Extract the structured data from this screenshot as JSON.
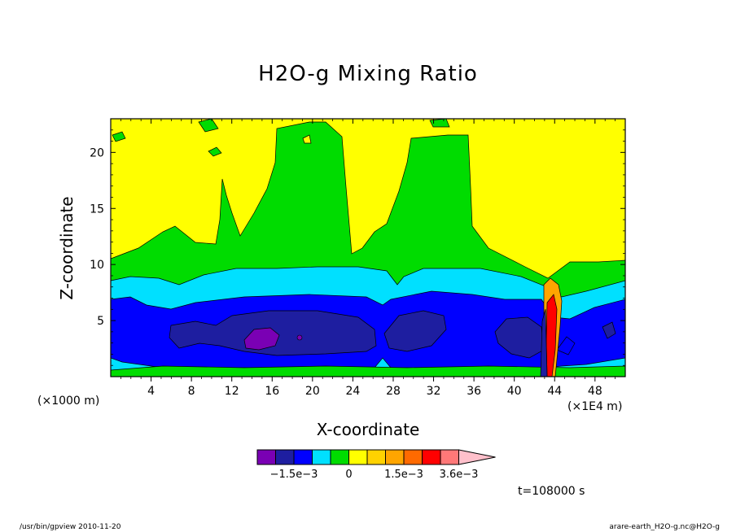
{
  "chart_data": {
    "type": "heatmap",
    "title": "H2O-g Mixing Ratio",
    "xlabel": "X-coordinate",
    "ylabel": "Z-coordinate",
    "x_unit_note": "(×1000 m)",
    "x_scale_note": "(×1E4 m)",
    "xlim": [
      0,
      51
    ],
    "ylim": [
      0,
      23
    ],
    "x_ticks": [
      4,
      8,
      12,
      16,
      20,
      24,
      28,
      32,
      36,
      40,
      44,
      48
    ],
    "y_ticks": [
      5,
      10,
      15,
      20
    ],
    "colorbar": {
      "colors": [
        "#7a00b4",
        "#1e1ea0",
        "#0000ff",
        "#00e0ff",
        "#00dc00",
        "#ffff00",
        "#ffd200",
        "#ffa500",
        "#ff6a00",
        "#ff0000",
        "#ff7878",
        "#ffc0cb"
      ],
      "labels": [
        "−1.5e−3",
        "0",
        "1.5e−3",
        "3.6e−3"
      ],
      "extend": "max"
    },
    "time_label": "t=108000 s",
    "footer_left": "/usr/bin/gpview   2010-11-20",
    "footer_right": "arare-earth_H2O-g.nc@H2O-g"
  }
}
